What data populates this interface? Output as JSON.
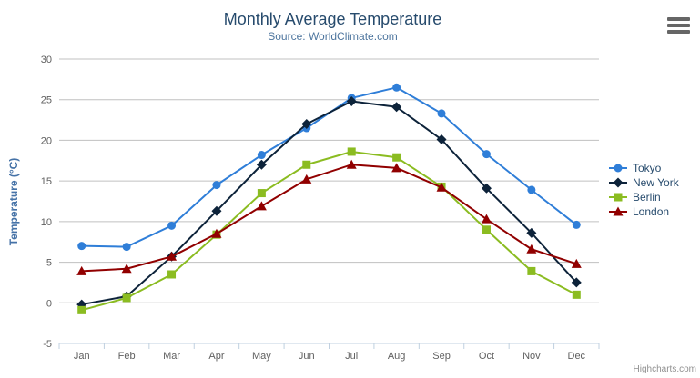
{
  "title": "Monthly Average Temperature",
  "subtitle": "Source: WorldClimate.com",
  "credits": "Highcharts.com",
  "colors": {
    "grid": "#C0C0C0",
    "axis_line": "#C0D0E0",
    "axis_label": "#606060",
    "title": "#274b6d",
    "subtitle": "#4d759e",
    "legend_text": "#274b6d",
    "credits": "#909090",
    "menu_icon": "#666666"
  },
  "chart_data": {
    "type": "line",
    "title": "Monthly Average Temperature",
    "subtitle": "Source: WorldClimate.com",
    "categories": [
      "Jan",
      "Feb",
      "Mar",
      "Apr",
      "May",
      "Jun",
      "Jul",
      "Aug",
      "Sep",
      "Oct",
      "Nov",
      "Dec"
    ],
    "series": [
      {
        "name": "Tokyo",
        "color": "#2f7ed8",
        "marker": "circle",
        "values": [
          7.0,
          6.9,
          9.5,
          14.5,
          18.2,
          21.5,
          25.2,
          26.5,
          23.3,
          18.3,
          13.9,
          9.6
        ]
      },
      {
        "name": "New York",
        "color": "#0d233a",
        "marker": "diamond",
        "values": [
          -0.2,
          0.8,
          5.7,
          11.3,
          17.0,
          22.0,
          24.8,
          24.1,
          20.1,
          14.1,
          8.6,
          2.5
        ]
      },
      {
        "name": "Berlin",
        "color": "#8bbc21",
        "marker": "square",
        "values": [
          -0.9,
          0.6,
          3.5,
          8.4,
          13.5,
          17.0,
          18.6,
          17.9,
          14.3,
          9.0,
          3.9,
          1.0
        ]
      },
      {
        "name": "London",
        "color": "#910000",
        "marker": "triangle",
        "values": [
          3.9,
          4.2,
          5.7,
          8.5,
          11.9,
          15.2,
          17.0,
          16.6,
          14.2,
          10.3,
          6.6,
          4.8
        ]
      }
    ],
    "xlabel": "",
    "ylabel": "Temperature (°C)",
    "ylim": [
      -5,
      30
    ],
    "ytick_step": 5,
    "grid": true,
    "legend_position": "right"
  }
}
